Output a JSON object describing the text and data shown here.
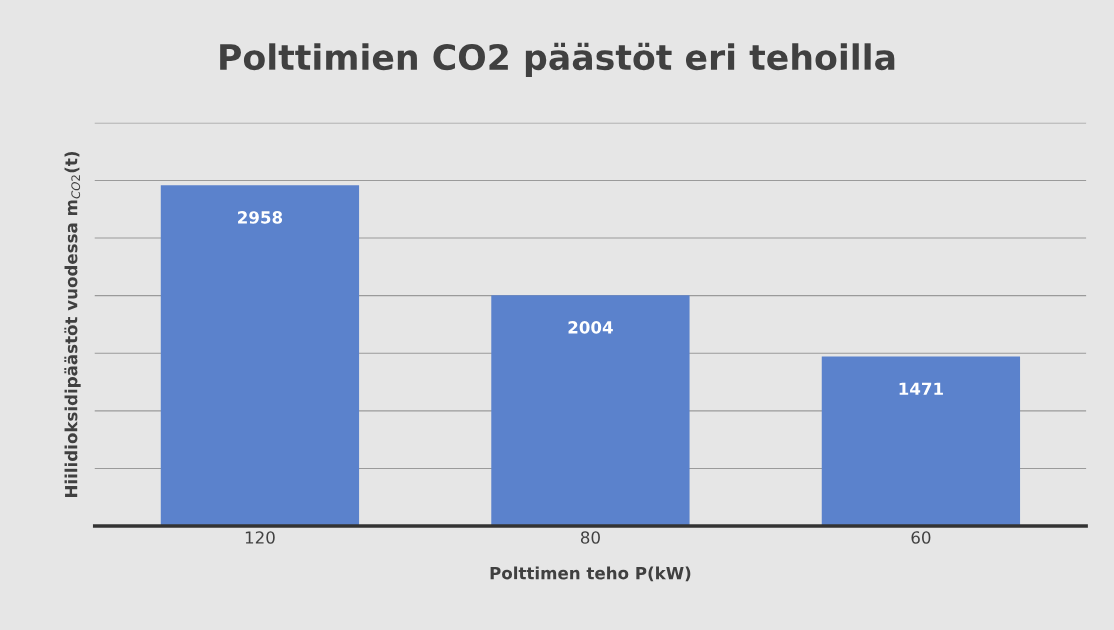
{
  "chart_data": {
    "type": "bar",
    "title": "Polttimien CO2 päästöt eri tehoilla",
    "xlabel": "Polttimen teho P(kW)",
    "ylabel": "Hiilidioksidipäästöt vuodessa m$_{CO2}$(t)",
    "categories": [
      "120",
      "80",
      "60"
    ],
    "values": [
      2958,
      2004,
      1471
    ],
    "color": "#5b82cc",
    "ylim": [
      0,
      3500
    ],
    "yticks": [
      {
        "value": 0,
        "label": null
      },
      {
        "value": 500,
        "label": null
      },
      {
        "value": 1000,
        "label": null
      },
      {
        "value": 1500,
        "label": null
      },
      {
        "value": 2000,
        "label": null
      },
      {
        "value": 2500,
        "label": null
      },
      {
        "value": 3000,
        "label": null
      },
      {
        "value": 3500,
        "label": null
      }
    ],
    "tick_labels": "x",
    "grid": "y",
    "data_labels": true,
    "legend": false
  }
}
